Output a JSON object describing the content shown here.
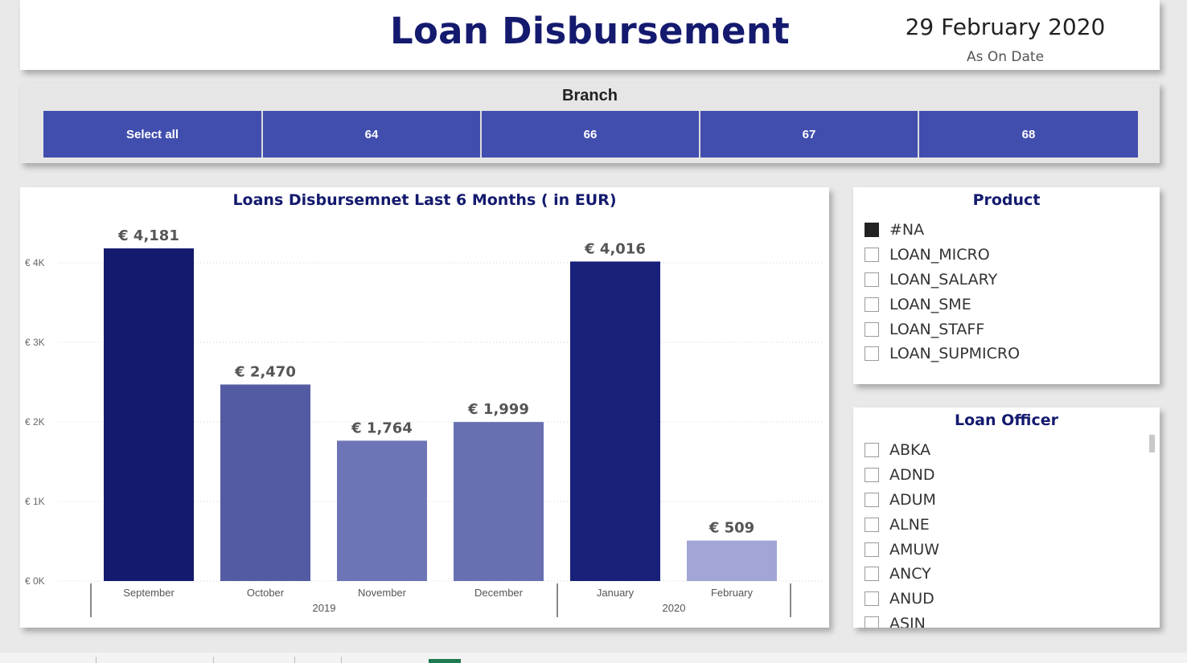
{
  "header": {
    "title": "Loan Disbursement",
    "date": "29 February 2020",
    "date_label": "As On Date"
  },
  "branch": {
    "title": "Branch",
    "buttons": [
      "Select all",
      "64",
      "66",
      "67",
      "68"
    ]
  },
  "product": {
    "title": "Product",
    "items": [
      {
        "label": "#NA",
        "checked": true
      },
      {
        "label": "LOAN_MICRO",
        "checked": false
      },
      {
        "label": "LOAN_SALARY",
        "checked": false
      },
      {
        "label": "LOAN_SME",
        "checked": false
      },
      {
        "label": "LOAN_STAFF",
        "checked": false
      },
      {
        "label": "LOAN_SUPMICRO",
        "checked": false
      }
    ]
  },
  "officer": {
    "title": "Loan Officer",
    "items": [
      "ABKA",
      "ADND",
      "ADUM",
      "ALNE",
      "AMUW",
      "ANCY",
      "ANUD",
      "ASIN"
    ]
  },
  "colors": {
    "title": "#141a6e",
    "button": "#414eae"
  },
  "chart_data": {
    "type": "bar",
    "title": "Loans Disbursemnet Last 6 Months ( in EUR)",
    "categories": [
      "September",
      "October",
      "November",
      "December",
      "January",
      "February"
    ],
    "years": [
      {
        "label": "2019",
        "months": [
          "September",
          "October",
          "November",
          "December"
        ]
      },
      {
        "label": "2020",
        "months": [
          "January",
          "February"
        ]
      }
    ],
    "values": [
      4181,
      2470,
      1764,
      1999,
      4016,
      509
    ],
    "data_labels": [
      "€ 4,181",
      "€ 2,470",
      "€ 1,764",
      "€ 1,999",
      "€ 4,016",
      "€ 509"
    ],
    "bar_colors": [
      "#141a6e",
      "#535ba3",
      "#6e75b6",
      "#6870b2",
      "#18207a",
      "#a1a6d6"
    ],
    "y_ticks": [
      0,
      1000,
      2000,
      3000,
      4000
    ],
    "y_tick_labels": [
      "€ 0K",
      "€ 1K",
      "€ 2K",
      "€ 3K",
      "€ 4K"
    ],
    "ylim": [
      0,
      4000
    ],
    "grid": true,
    "xlabel": "",
    "ylabel": ""
  }
}
